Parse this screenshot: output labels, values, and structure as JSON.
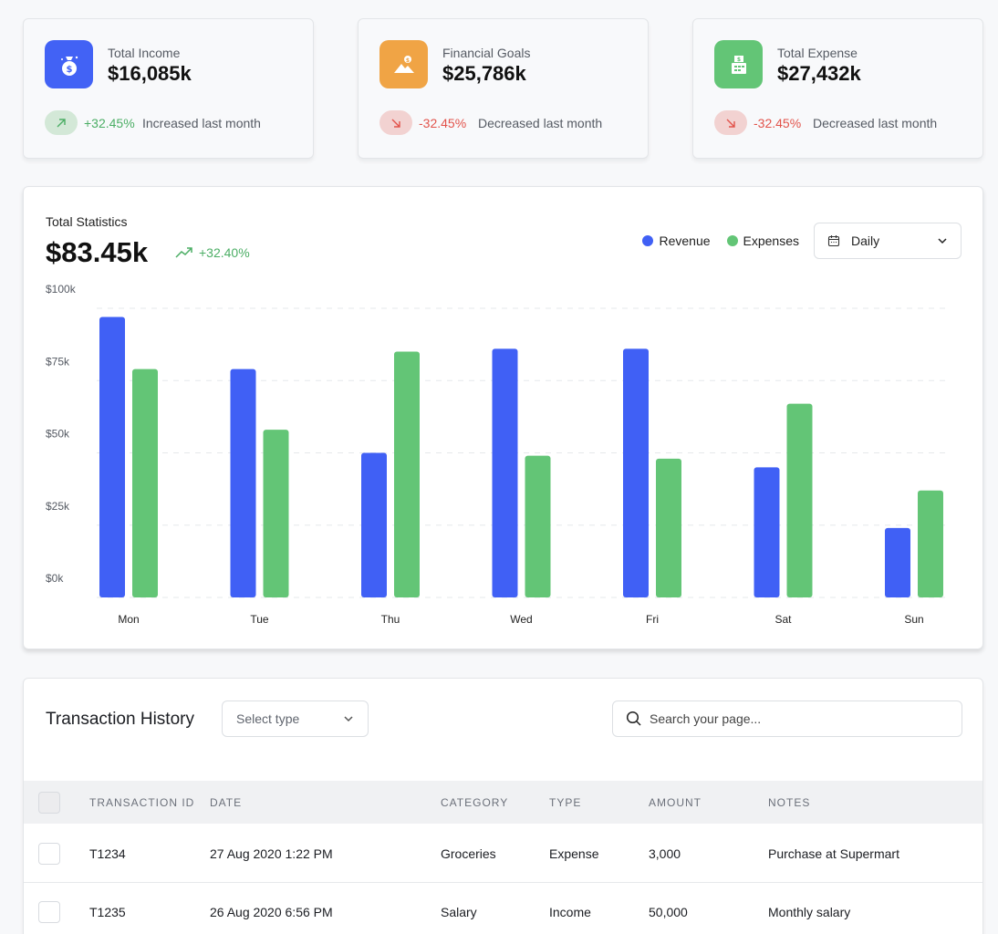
{
  "colors": {
    "blue": "#4060f5",
    "green": "#63c576",
    "orange": "#f0a445",
    "positive": "#4cae65",
    "negative": "#e2534b"
  },
  "stat_cards": [
    {
      "icon": "money-bag-icon",
      "label": "Total Income",
      "value": "$16,085k",
      "delta": "+32.45%",
      "delta_text": "Increased last month",
      "trend": "up"
    },
    {
      "icon": "goal-mountain-icon",
      "label": "Financial Goals",
      "value": "$25,786k",
      "delta": "-32.45%",
      "delta_text": "Decreased  last month",
      "trend": "down"
    },
    {
      "icon": "cash-register-icon",
      "label": "Total Expense",
      "value": "$27,432k",
      "delta": "-32.45%",
      "delta_text": "Decreased  last month",
      "trend": "down"
    }
  ],
  "statistics": {
    "title": "Total Statistics",
    "total": "$83.45k",
    "trend": "+32.40%",
    "legend": [
      "Revenue",
      "Expenses"
    ],
    "period": "Daily"
  },
  "chart_data": {
    "type": "bar",
    "categories": [
      "Mon",
      "Tue",
      "Thu",
      "Wed",
      "Fri",
      "Sat",
      "Sun"
    ],
    "series": [
      {
        "name": "Revenue",
        "values": [
          97,
          79,
          50,
          86,
          86,
          45,
          24
        ]
      },
      {
        "name": "Expenses",
        "values": [
          79,
          58,
          85,
          49,
          48,
          67,
          37
        ]
      }
    ],
    "yticks": [
      "$0k",
      "$25k",
      "$50k",
      "$75k",
      "$100k"
    ],
    "ylim": [
      0,
      100
    ],
    "grid": true,
    "legend_position": "top-right"
  },
  "transactions": {
    "title": "Transaction History",
    "type_placeholder": "Select type",
    "search_placeholder": "Search your page...",
    "columns": [
      "TRANSACTION ID",
      "DATE",
      "CATEGORY",
      "TYPE",
      "AMOUNT",
      "NOTES"
    ],
    "rows": [
      {
        "id": "T1234",
        "date": "27 Aug 2020 1:22 PM",
        "category": "Groceries",
        "type": "Expense",
        "amount": "3,000",
        "notes": "Purchase at Supermart"
      },
      {
        "id": "T1235",
        "date": "26 Aug 2020 6:56 PM",
        "category": "Salary",
        "type": "Income",
        "amount": "50,000",
        "notes": "Monthly salary"
      }
    ]
  }
}
